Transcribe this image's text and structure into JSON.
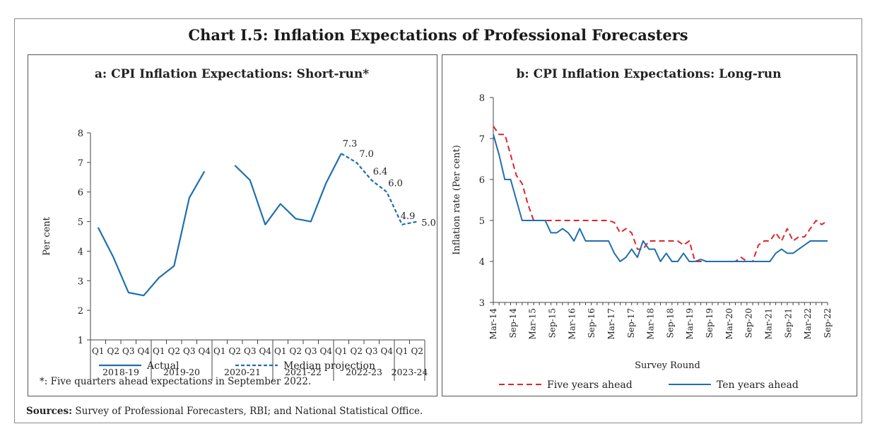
{
  "main_title": "Chart I.5: Inflation Expectations of Professional Forecasters",
  "sources_label": "Sources:",
  "sources_text": "Survey of Professional Forecasters, RBI; and National Statistical Office.",
  "colors": {
    "actual": "#1f6fae",
    "five_year": "#e0242b",
    "ten_year": "#1f6fae"
  },
  "chart_data": [
    {
      "type": "line",
      "title": "a: CPI Inflation Expectations: Short-run*",
      "ylabel": "Per cent",
      "ylim": [
        1,
        8
      ],
      "yticks": [
        "1",
        "2",
        "3",
        "4",
        "5",
        "6",
        "7",
        "8"
      ],
      "quarter_labels": [
        "Q1",
        "Q2",
        "Q3",
        "Q4",
        "Q1",
        "Q2",
        "Q3",
        "Q4",
        "Q1",
        "Q2",
        "Q3",
        "Q4",
        "Q1",
        "Q2",
        "Q3",
        "Q4",
        "Q1",
        "Q2",
        "Q3",
        "Q4",
        "Q1",
        "Q2"
      ],
      "year_groups": [
        {
          "label": "2018-19",
          "start": 0,
          "count": 4
        },
        {
          "label": "2019-20",
          "start": 4,
          "count": 4
        },
        {
          "label": "2020-21",
          "start": 8,
          "count": 4
        },
        {
          "label": "2021-22",
          "start": 12,
          "count": 4
        },
        {
          "label": "2022-23",
          "start": 16,
          "count": 4
        },
        {
          "label": "2023-24",
          "start": 20,
          "count": 2
        }
      ],
      "series": [
        {
          "name": "Actual",
          "style": "solid",
          "values": [
            4.8,
            3.8,
            2.6,
            2.5,
            3.1,
            3.5,
            5.8,
            6.7,
            null,
            6.9,
            6.4,
            4.9,
            5.6,
            5.1,
            5.0,
            6.3,
            7.3
          ]
        },
        {
          "name": "Median projection",
          "style": "dashed",
          "values": [
            null,
            null,
            null,
            null,
            null,
            null,
            null,
            null,
            null,
            null,
            null,
            null,
            null,
            null,
            null,
            null,
            7.3,
            7.0,
            6.4,
            6.0,
            4.9,
            5.0
          ]
        }
      ],
      "data_labels": [
        {
          "index": 16,
          "value": 7.3,
          "text": "7.3"
        },
        {
          "index": 17,
          "value": 7.0,
          "text": "7.0"
        },
        {
          "index": 18,
          "value": 6.4,
          "text": "6.4"
        },
        {
          "index": 19,
          "value": 6.0,
          "text": "6.0"
        },
        {
          "index": 20,
          "value": 4.9,
          "text": "4.9"
        },
        {
          "index": 21,
          "value": 5.0,
          "text": "5.0"
        }
      ],
      "footnote": "*: Five quarters ahead expectations in September 2022.",
      "legend": [
        {
          "name": "Actual",
          "style": "solid"
        },
        {
          "name": "Median projection",
          "style": "dashed"
        }
      ]
    },
    {
      "type": "line",
      "title": "b: CPI Inflation Expectations: Long-run",
      "ylabel": "Inflation rate (Per cent)",
      "xlabel": "Survey Round",
      "ylim": [
        3,
        8
      ],
      "yticks": [
        "3",
        "4",
        "5",
        "6",
        "7",
        "8"
      ],
      "xticks": [
        "Mar-14",
        "Sep-14",
        "Mar-15",
        "Sep-15",
        "Mar-16",
        "Sep-16",
        "Mar-17",
        "Sep-17",
        "Mar-18",
        "Sep-18",
        "Mar-19",
        "Sep-19",
        "Mar-20",
        "Sep-20",
        "Mar-21",
        "Sep-21",
        "Mar-22",
        "Sep-22"
      ],
      "series": [
        {
          "name": "Five years ahead",
          "style": "dashed",
          "values": [
            7.3,
            7.1,
            7.1,
            6.6,
            6.1,
            5.9,
            5.4,
            5.0,
            5.0,
            5.0,
            5.0,
            5.0,
            5.0,
            5.0,
            5.0,
            5.0,
            5.0,
            5.0,
            5.0,
            5.0,
            5.0,
            4.95,
            4.7,
            4.8,
            4.7,
            4.3,
            4.3,
            4.5,
            4.5,
            4.5,
            4.5,
            4.5,
            4.5,
            4.4,
            4.5,
            4.0,
            4.0,
            4.0,
            4.0,
            4.0,
            4.0,
            4.0,
            4.0,
            4.1,
            4.0,
            4.0,
            4.4,
            4.5,
            4.5,
            4.7,
            4.5,
            4.8,
            4.5,
            4.6,
            4.6,
            4.8,
            5.0,
            4.9,
            5.0
          ]
        },
        {
          "name": "Ten years ahead",
          "style": "solid",
          "values": [
            7.1,
            6.6,
            6.0,
            6.0,
            5.5,
            5.0,
            5.0,
            5.0,
            5.0,
            5.0,
            4.7,
            4.7,
            4.8,
            4.7,
            4.5,
            4.8,
            4.5,
            4.5,
            4.5,
            4.5,
            4.5,
            4.2,
            4.0,
            4.1,
            4.3,
            4.1,
            4.5,
            4.3,
            4.3,
            4.0,
            4.2,
            4.0,
            4.0,
            4.2,
            4.0,
            4.0,
            4.05,
            4.0,
            4.0,
            4.0,
            4.0,
            4.0,
            4.0,
            4.0,
            4.0,
            4.0,
            4.0,
            4.0,
            4.0,
            4.2,
            4.3,
            4.2,
            4.2,
            4.3,
            4.4,
            4.5,
            4.5,
            4.5,
            4.5
          ]
        }
      ],
      "legend": [
        {
          "name": "Five years ahead",
          "style": "dashed"
        },
        {
          "name": "Ten years ahead",
          "style": "solid"
        }
      ]
    }
  ]
}
